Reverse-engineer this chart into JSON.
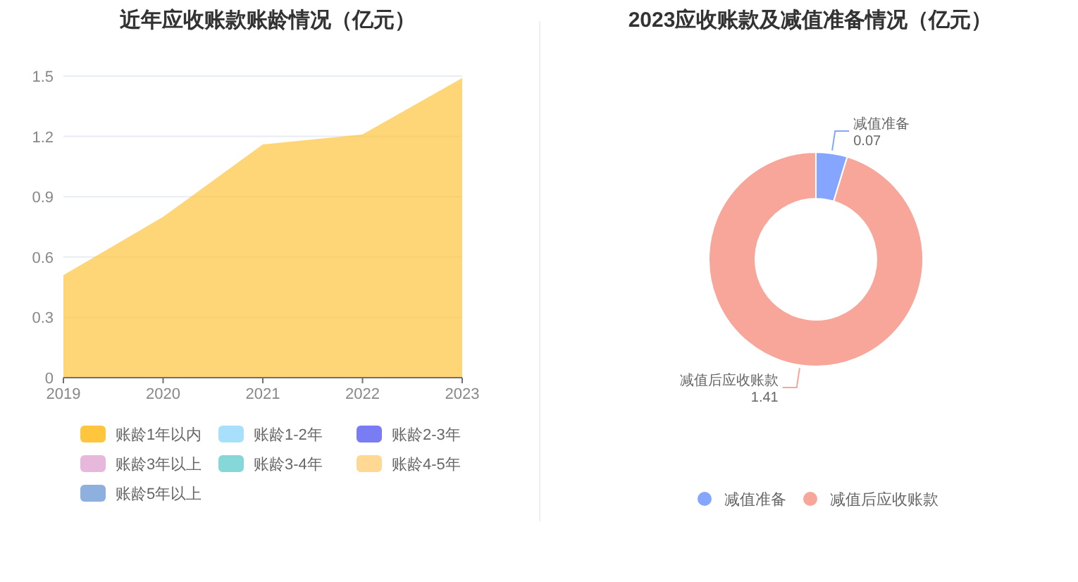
{
  "chart_data": [
    {
      "type": "area",
      "title": "近年应收账款账龄情况（亿元）",
      "categories": [
        "2019",
        "2020",
        "2021",
        "2022",
        "2023"
      ],
      "ylim": [
        0,
        1.5
      ],
      "yticks": [
        0,
        0.3,
        0.6,
        0.9,
        1.2,
        1.5
      ],
      "grid": "y",
      "legend": "bottom",
      "series": [
        {
          "name": "账龄1年以内",
          "color": "#ffc53d",
          "values": [
            0.51,
            0.8,
            1.16,
            1.21,
            1.49
          ]
        },
        {
          "name": "账龄1-2年",
          "color": "#a8e0fb",
          "values": [
            null,
            null,
            null,
            null,
            null
          ]
        },
        {
          "name": "账龄2-3年",
          "color": "#7a7cf4",
          "values": [
            null,
            null,
            null,
            null,
            null
          ]
        },
        {
          "name": "账龄3年以上",
          "color": "#e8b8dc",
          "values": [
            null,
            null,
            null,
            null,
            null
          ]
        },
        {
          "name": "账龄3-4年",
          "color": "#86d8d8",
          "values": [
            null,
            null,
            null,
            null,
            null
          ]
        },
        {
          "name": "账龄4-5年",
          "color": "#ffd993",
          "values": [
            null,
            null,
            null,
            null,
            null
          ]
        },
        {
          "name": "账龄5年以上",
          "color": "#8eb0de",
          "values": [
            null,
            null,
            null,
            null,
            null
          ]
        }
      ]
    },
    {
      "type": "donut",
      "title": "2023应收账款及减值准备情况（亿元）",
      "categories": [
        "减值准备",
        "减值后应收账款"
      ],
      "values": [
        0.07,
        1.41
      ],
      "colors": [
        "#85a5ff",
        "#f8a59a"
      ],
      "data_labels": true,
      "legend": "bottom"
    }
  ]
}
